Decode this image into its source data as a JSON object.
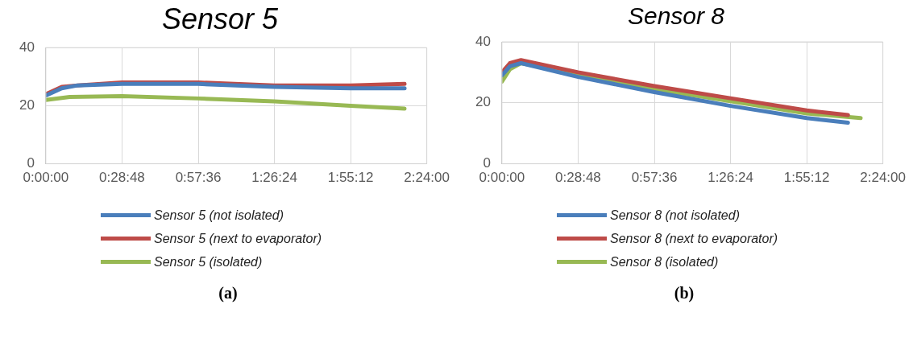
{
  "chart_data": [
    {
      "type": "line",
      "title": "Sensor 5",
      "xlim": [
        0,
        2.4
      ],
      "xticks": [
        {
          "value": 0,
          "label": "0:00:00"
        },
        {
          "value": 0.48,
          "label": "0:28:48"
        },
        {
          "value": 0.96,
          "label": "0:57:36"
        },
        {
          "value": 1.44,
          "label": "1:26:24"
        },
        {
          "value": 1.92,
          "label": "1:55:12"
        },
        {
          "value": 2.4,
          "label": "2:24:00"
        }
      ],
      "ylim": [
        0,
        40
      ],
      "yticks": [
        0,
        20,
        40
      ],
      "grid": true,
      "legend": "bottom",
      "marker": "none",
      "line_style": "solid",
      "series": [
        {
          "name": "Sensor 5 (not isolated)",
          "color": "#4a7ebb",
          "x": [
            0,
            0.1,
            0.2,
            0.48,
            0.96,
            1.44,
            1.92,
            2.26
          ],
          "values": [
            23.5,
            26,
            27,
            27.5,
            27.5,
            26.5,
            26,
            26
          ]
        },
        {
          "name": "Sensor 5 (next to evaporator)",
          "color": "#be4b48",
          "x": [
            0,
            0.1,
            0.2,
            0.48,
            0.7,
            0.96,
            1.44,
            1.92,
            2.26
          ],
          "values": [
            24,
            26.5,
            27,
            28,
            28,
            28,
            27,
            27,
            27.5
          ]
        },
        {
          "name": "Sensor 5 (isolated)",
          "color": "#98b954",
          "x": [
            0,
            0.15,
            0.48,
            0.96,
            1.44,
            1.92,
            2.26
          ],
          "values": [
            22,
            23,
            23.3,
            22.5,
            21.5,
            20,
            19
          ]
        }
      ],
      "annotations": [
        "(a)"
      ]
    },
    {
      "type": "line",
      "title": "Sensor 8",
      "xlim": [
        0,
        2.4
      ],
      "xticks": [
        {
          "value": 0,
          "label": "0:00:00"
        },
        {
          "value": 0.48,
          "label": "0:28:48"
        },
        {
          "value": 0.96,
          "label": "0:57:36"
        },
        {
          "value": 1.44,
          "label": "1:26:24"
        },
        {
          "value": 1.92,
          "label": "1:55:12"
        },
        {
          "value": 2.4,
          "label": "2:24:00"
        }
      ],
      "ylim": [
        0,
        40
      ],
      "yticks": [
        0,
        20,
        40
      ],
      "grid": true,
      "legend": "bottom",
      "marker": "none",
      "line_style": "solid",
      "series": [
        {
          "name": "Sensor 8 (not isolated)",
          "color": "#4a7ebb",
          "x": [
            0,
            0.05,
            0.12,
            0.48,
            0.96,
            1.44,
            1.92,
            2.18
          ],
          "values": [
            29,
            32,
            33,
            28.5,
            23.5,
            19,
            15,
            13.5
          ]
        },
        {
          "name": "Sensor 8 (next to evaporator)",
          "color": "#be4b48",
          "x": [
            0,
            0.05,
            0.12,
            0.48,
            0.96,
            1.44,
            1.92,
            2.18
          ],
          "values": [
            30,
            33,
            34,
            30,
            25.5,
            21.5,
            17.5,
            16
          ]
        },
        {
          "name": "Sensor 8 (isolated)",
          "color": "#98b954",
          "x": [
            0,
            0.05,
            0.12,
            0.48,
            0.96,
            1.44,
            1.92,
            2.26
          ],
          "values": [
            27,
            31,
            33,
            29.5,
            24.5,
            20.5,
            16.5,
            15
          ]
        }
      ],
      "annotations": [
        "(b)"
      ]
    }
  ]
}
